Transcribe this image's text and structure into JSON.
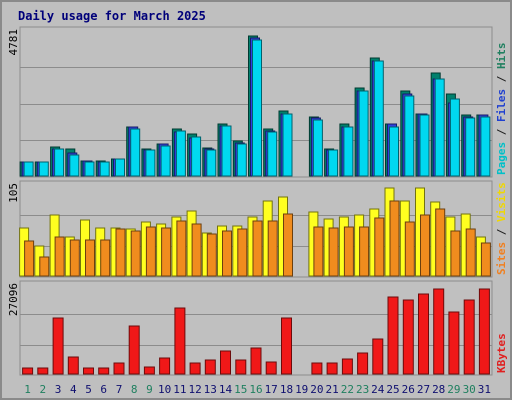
{
  "chart_data": [
    {
      "type": "bar",
      "title": "Daily usage for March 2025",
      "ymax_label": "4781",
      "ylim": [
        0,
        4781
      ],
      "right_label": [
        {
          "text": "Pages",
          "color": "#00c0c8"
        },
        {
          "text": " / ",
          "color": "#202020"
        },
        {
          "text": "Files",
          "color": "#2040d0"
        },
        {
          "text": " / ",
          "color": "#202020"
        },
        {
          "text": "Hits",
          "color": "#208060"
        }
      ],
      "categories": [
        "1",
        "2",
        "3",
        "4",
        "5",
        "6",
        "7",
        "8",
        "9",
        "10",
        "11",
        "12",
        "13",
        "14",
        "15",
        "16",
        "17",
        "18",
        "19",
        "20",
        "21",
        "22",
        "23",
        "24",
        "25",
        "26",
        "27",
        "28",
        "29",
        "30",
        "31"
      ],
      "series": [
        {
          "name": "Hits",
          "color": "#00806c",
          "values": [
            450,
            450,
            950,
            880,
            500,
            500,
            550,
            1600,
            900,
            1050,
            1550,
            1380,
            930,
            1700,
            1150,
            4600,
            1550,
            2150,
            0,
            1950,
            900,
            1700,
            2900,
            3900,
            1700,
            2800,
            2050,
            3400,
            2700,
            2000,
            2000
          ]
        },
        {
          "name": "Files",
          "color": "#3040e0",
          "values": [
            450,
            450,
            900,
            750,
            500,
            450,
            550,
            1600,
            850,
            1050,
            1450,
            1250,
            900,
            1650,
            1100,
            4550,
            1500,
            2050,
            0,
            1900,
            850,
            1600,
            2800,
            3800,
            1700,
            2700,
            2050,
            3200,
            2400,
            1950,
            2000
          ]
        },
        {
          "name": "Pages",
          "color": "#00d8f0",
          "values": [
            450,
            450,
            900,
            700,
            450,
            450,
            550,
            1550,
            850,
            1000,
            1500,
            1300,
            850,
            1650,
            1050,
            4500,
            1450,
            2050,
            0,
            1850,
            850,
            1600,
            2800,
            3800,
            1600,
            2650,
            2000,
            3200,
            2550,
            1900,
            1950
          ]
        }
      ]
    },
    {
      "type": "bar",
      "ymax_label": "105",
      "ylim": [
        0,
        105
      ],
      "right_label": [
        {
          "text": "Sites",
          "color": "#f08020"
        },
        {
          "text": " / ",
          "color": "#202020"
        },
        {
          "text": "Visits",
          "color": "#f0d800"
        }
      ],
      "categories": [
        "1",
        "2",
        "3",
        "4",
        "5",
        "6",
        "7",
        "8",
        "9",
        "10",
        "11",
        "12",
        "13",
        "14",
        "15",
        "16",
        "17",
        "18",
        "19",
        "20",
        "21",
        "22",
        "23",
        "24",
        "25",
        "26",
        "27",
        "28",
        "29",
        "30",
        "31"
      ],
      "series": [
        {
          "name": "Visits",
          "color": "#ffff20",
          "values": [
            55,
            35,
            70,
            45,
            65,
            55,
            55,
            54,
            62,
            60,
            68,
            75,
            50,
            58,
            58,
            68,
            86,
            91,
            0,
            74,
            66,
            68,
            70,
            77,
            102,
            86,
            101,
            85,
            68,
            72,
            45
          ]
        },
        {
          "name": "Sites",
          "color": "#f08c1e",
          "values": [
            40,
            22,
            45,
            41,
            42,
            42,
            54,
            52,
            56,
            55,
            64,
            60,
            48,
            52,
            54,
            64,
            64,
            72,
            0,
            56,
            55,
            56,
            56,
            67,
            86,
            62,
            70,
            77,
            52,
            54,
            38
          ]
        }
      ]
    },
    {
      "type": "bar",
      "ymax_label": "27096",
      "ylim": [
        0,
        27096
      ],
      "right_label": [
        {
          "text": "KBytes",
          "color": "#e02020"
        }
      ],
      "categories": [
        "1",
        "2",
        "3",
        "4",
        "5",
        "6",
        "7",
        "8",
        "9",
        "10",
        "11",
        "12",
        "13",
        "14",
        "15",
        "16",
        "17",
        "18",
        "19",
        "20",
        "21",
        "22",
        "23",
        "24",
        "25",
        "26",
        "27",
        "28",
        "29",
        "30",
        "31"
      ],
      "series": [
        {
          "name": "KBytes",
          "color": "#f01818",
          "values": [
            1800,
            1800,
            17000,
            5300,
            1800,
            1800,
            3300,
            14500,
            2100,
            4800,
            20000,
            3300,
            4200,
            6900,
            4200,
            7800,
            3600,
            17000,
            0,
            3500,
            3500,
            4500,
            6400,
            10700,
            23400,
            22500,
            24300,
            26000,
            18800,
            22500,
            26000
          ]
        }
      ]
    }
  ],
  "x_labels": {
    "values": [
      "1",
      "2",
      "3",
      "4",
      "5",
      "6",
      "7",
      "8",
      "9",
      "10",
      "11",
      "12",
      "13",
      "14",
      "15",
      "16",
      "17",
      "18",
      "19",
      "20",
      "21",
      "22",
      "23",
      "24",
      "25",
      "26",
      "27",
      "28",
      "29",
      "30",
      "31"
    ],
    "weekend_color": "#208060",
    "weekday_color": "#101070",
    "weekend": [
      1,
      2,
      8,
      9,
      15,
      16,
      22,
      23,
      29,
      30
    ]
  }
}
